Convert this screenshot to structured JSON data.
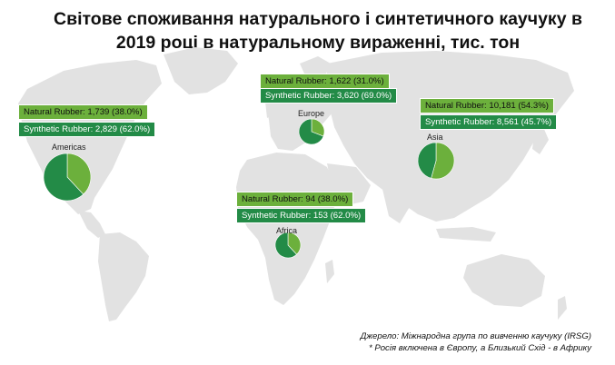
{
  "title": "Світове споживання натурального і синтетичного каучуку в 2019 році в натуральному вираженні, тис. тон",
  "colors": {
    "natural": "#6cb03c",
    "synthetic": "#238b47",
    "land": "#e2e2e2"
  },
  "chart_data": {
    "type": "pie",
    "title": "Світове споживання натурального і синтетичного каучуку в 2019 році в натуральному вираженні, тис. тон",
    "series_names": [
      "Natural Rubber",
      "Synthetic Rubber"
    ],
    "regions": [
      {
        "id": "americas",
        "name": "Americas",
        "natural": {
          "label": "Natural Rubber: 1,739 (38.0%)",
          "value": 1739,
          "percent": 38.0
        },
        "synthetic": {
          "label": "Synthetic Rubber: 2,829 (62.0%)",
          "value": 2829,
          "percent": 62.0
        }
      },
      {
        "id": "europe",
        "name": "Europe",
        "natural": {
          "label": "Natural Rubber: 1,622 (31.0%)",
          "value": 1622,
          "percent": 31.0
        },
        "synthetic": {
          "label": "Synthetic Rubber: 3,620 (69.0%)",
          "value": 3620,
          "percent": 69.0
        }
      },
      {
        "id": "asia",
        "name": "Asia",
        "natural": {
          "label": "Natural Rubber: 10,181 (54.3%)",
          "value": 10181,
          "percent": 54.3
        },
        "synthetic": {
          "label": "Synthetic Rubber: 8,561 (45.7%)",
          "value": 8561,
          "percent": 45.7
        }
      },
      {
        "id": "africa",
        "name": "Africa",
        "natural": {
          "label": "Natural Rubber: 94 (38.0%)",
          "value": 94,
          "percent": 38.0
        },
        "synthetic": {
          "label": "Synthetic Rubber: 153 (62.0%)",
          "value": 153,
          "percent": 62.0
        }
      }
    ]
  },
  "source": {
    "line1": "Джерело: Міжнародна група по вивченню каучуку (IRSG)",
    "line2": "* Росія включена в Європу, а Близький Схід - в Африку"
  }
}
